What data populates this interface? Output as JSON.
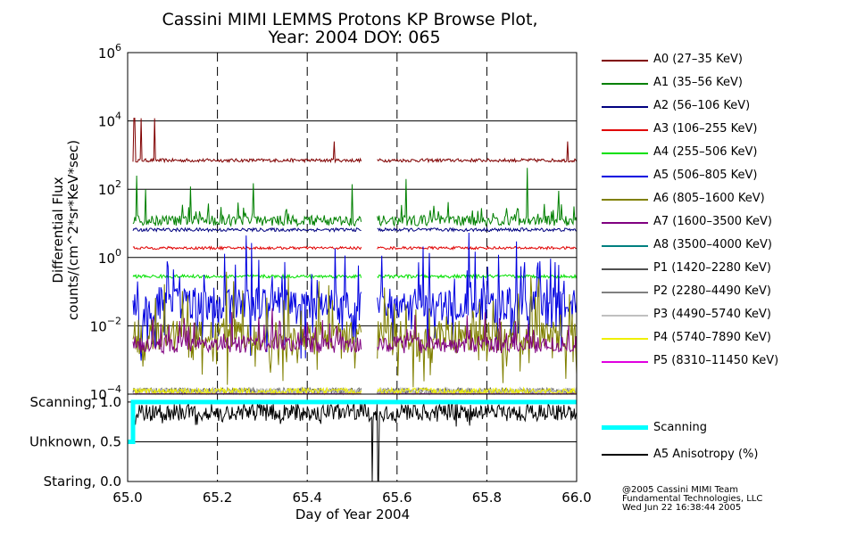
{
  "chart_data": {
    "type": "line",
    "title_line1": "Cassini MIMI LEMMS Protons KP Browse Plot,",
    "title_line2": "Year: 2004 DOY: 065",
    "xlabel": "Day of Year 2004",
    "ylabel_line1": "Differential Flux",
    "ylabel_line2": "counts/(cm^2*sr*KeV*sec)",
    "xlim": [
      65.0,
      66.0
    ],
    "x_ticks": [
      "65.0",
      "65.2",
      "65.4",
      "65.6",
      "65.8",
      "66.0"
    ],
    "upper_panel": {
      "yscale": "log",
      "ylim": [
        0.0001,
        1000000
      ],
      "y_ticks": [
        {
          "base": "10",
          "exp": "6"
        },
        {
          "base": "10",
          "exp": "4"
        },
        {
          "base": "10",
          "exp": "2"
        },
        {
          "base": "10",
          "exp": "0"
        },
        {
          "base": "10",
          "exp": "−2"
        },
        {
          "base": "10",
          "exp": "−4"
        }
      ],
      "data_gaps": [
        [
          65.52,
          65.555
        ]
      ],
      "series": [
        {
          "name": "A0 (27–35 KeV)",
          "color": "#800000",
          "typical": 700,
          "spread": 0.05,
          "spikes": [
            [
              65.015,
              12000
            ],
            [
              65.03,
              12000
            ],
            [
              65.06,
              12000
            ],
            [
              65.46,
              2500
            ],
            [
              65.98,
              2500
            ]
          ]
        },
        {
          "name": "A1 (35–56 KeV)",
          "color": "#008000",
          "typical": 12,
          "spread": 0.15,
          "spikes": [
            [
              65.02,
              250
            ],
            [
              65.04,
              100
            ],
            [
              65.14,
              120
            ],
            [
              65.28,
              150
            ],
            [
              65.5,
              140
            ],
            [
              65.62,
              200
            ],
            [
              65.89,
              420
            ],
            [
              65.96,
              90
            ]
          ]
        },
        {
          "name": "A2 (56–106 KeV)",
          "color": "#000080",
          "typical": 6.5,
          "spread": 0.05,
          "spikes": []
        },
        {
          "name": "A3 (106–255 KeV)",
          "color": "#e00000",
          "typical": 1.9,
          "spread": 0.04,
          "spikes": []
        },
        {
          "name": "A4 (255–506 KeV)",
          "color": "#00e000",
          "typical": 0.28,
          "spread": 0.05,
          "spikes": []
        },
        {
          "name": "A5 (506–805 KeV)",
          "color": "#0000e0",
          "typical": 0.045,
          "spread": 0.5,
          "spikes": []
        },
        {
          "name": "A6 (805–1600 KeV)",
          "color": "#808000",
          "typical": 0.005,
          "spread": 0.45,
          "spikes": []
        },
        {
          "name": "A7 (1600–3500 KeV)",
          "color": "#800080",
          "typical": 0.0028,
          "spread": 0.25,
          "spikes": []
        },
        {
          "name": "A8 (3500–4000 KeV)",
          "color": "#008080",
          "typical": 8e-05,
          "spread": 0.1,
          "spikes": []
        },
        {
          "name": "P1 (1420–2280 KeV)",
          "color": "#505050",
          "typical": 0.00012,
          "spread": 0.1,
          "spikes": []
        },
        {
          "name": "P2 (2280–4490 KeV)",
          "color": "#808080",
          "typical": 0.00012,
          "spread": 0.1,
          "spikes": []
        },
        {
          "name": "P3 (4490–5740 KeV)",
          "color": "#c0c0c0",
          "typical": 0.00012,
          "spread": 0.1,
          "spikes": []
        },
        {
          "name": "P4 (5740–7890 KeV)",
          "color": "#f0f000",
          "typical": 0.00012,
          "spread": 0.1,
          "spikes": []
        },
        {
          "name": "P5 (8310–11450 KeV)",
          "color": "#e000e0",
          "typical": 8e-05,
          "spread": 0.1,
          "spikes": []
        }
      ]
    },
    "lower_panel": {
      "ylim": [
        0.0,
        1.1
      ],
      "y_ticks": [
        {
          "label": "Scanning, 1.0",
          "value": 1.0
        },
        {
          "label": "Unknown, 0.5",
          "value": 0.5
        },
        {
          "label": "Staring, 0.0",
          "value": 0.0
        }
      ],
      "series": [
        {
          "name": "Scanning",
          "color": "#00ffff",
          "points": [
            [
              65.0,
              0.5
            ],
            [
              65.012,
              0.5
            ],
            [
              65.012,
              1.0
            ],
            [
              66.0,
              1.0
            ]
          ]
        },
        {
          "name": "A5 Anisotropy (%)",
          "color": "#000000",
          "typical": 0.87,
          "dropouts": [
            [
              65.545,
              0.0
            ],
            [
              65.558,
              0.0
            ]
          ]
        }
      ]
    }
  },
  "credits": {
    "line1": "@2005 Cassini MIMI Team",
    "line2": "Fundamental Technologies, LLC",
    "line3": "Wed Jun 22 16:38:44 2005"
  }
}
